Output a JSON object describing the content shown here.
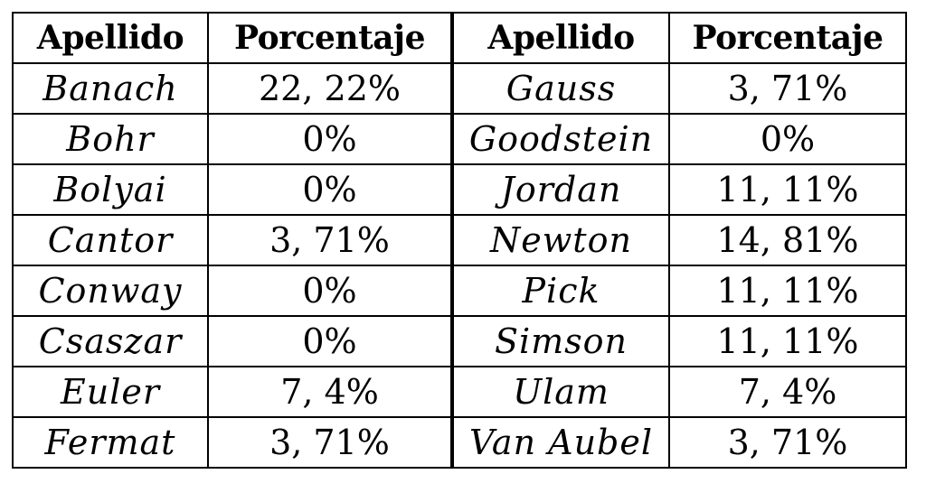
{
  "table": {
    "headers": [
      "Apellido",
      "Porcentaje",
      "Apellido",
      "Porcentaje"
    ],
    "rows": [
      [
        "Banach",
        "22, 22%",
        "Gauss",
        "3, 71%"
      ],
      [
        "Bohr",
        "0%",
        "Goodstein",
        "0%"
      ],
      [
        "Bolyai",
        "0%",
        "Jordan",
        "11, 11%"
      ],
      [
        "Cantor",
        "3, 71%",
        "Newton",
        "14, 81%"
      ],
      [
        "Conway",
        "0%",
        "Pick",
        "11, 11%"
      ],
      [
        "Csaszar",
        "0%",
        "Simson",
        "11, 11%"
      ],
      [
        "Euler",
        "7, 4%",
        "Ulam",
        "7, 4%"
      ],
      [
        "Fermat",
        "3, 71%",
        "Van Aubel",
        "3, 71%"
      ]
    ]
  }
}
